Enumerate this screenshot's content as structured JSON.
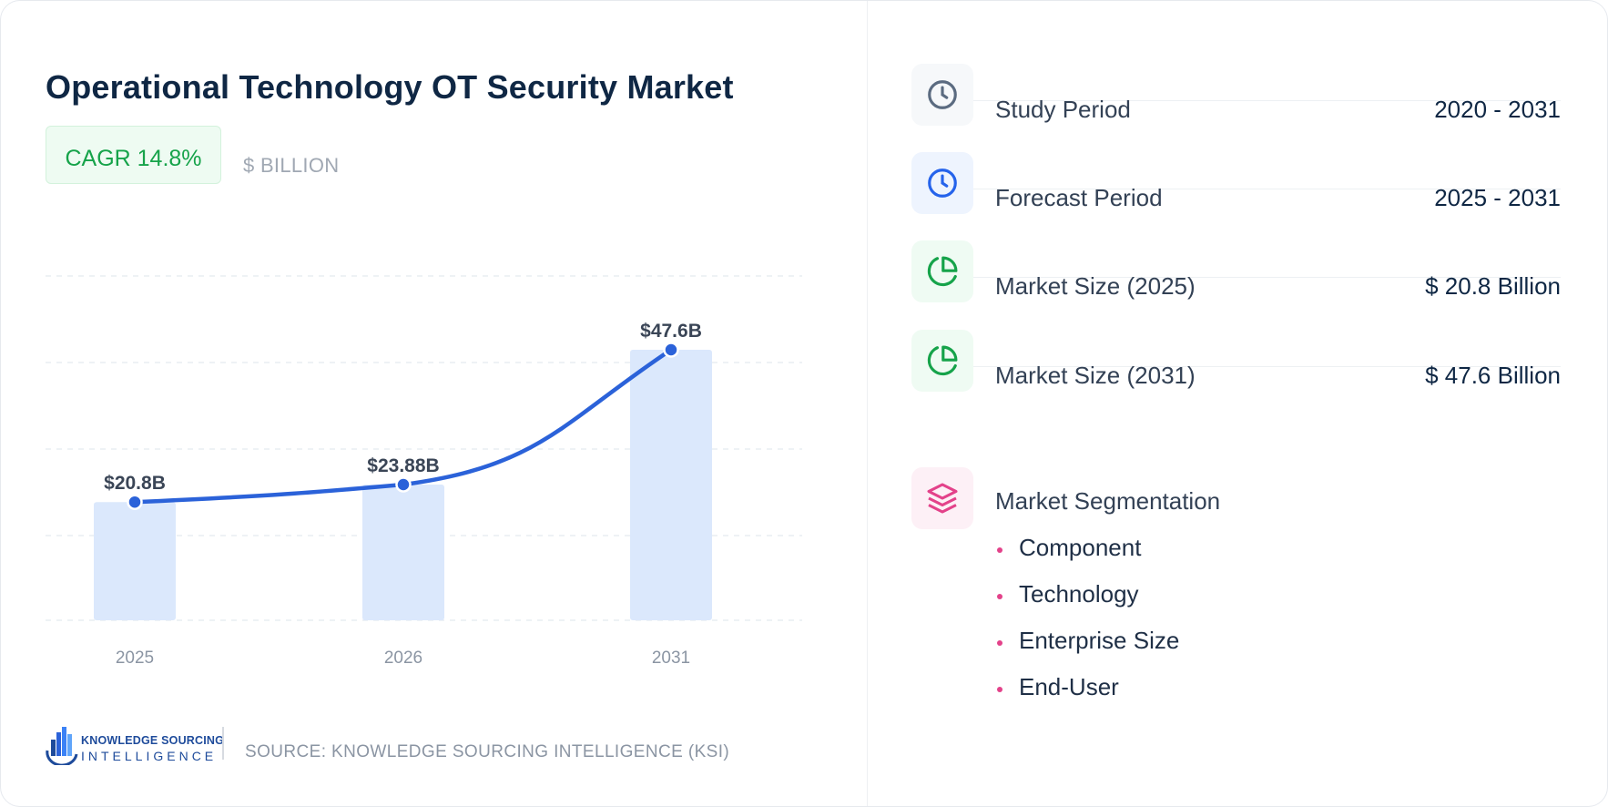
{
  "title": "Operational Technology OT Security Market",
  "cagr_label": "CAGR 14.8%",
  "unit_label": "$ BILLION",
  "chart_data": {
    "type": "bar",
    "categories": [
      "2025",
      "2026",
      "2031"
    ],
    "values": [
      20.8,
      23.88,
      47.6
    ],
    "data_labels": [
      "$20.8B",
      "$23.88B",
      "$47.6B"
    ],
    "ylim": [
      0,
      50
    ],
    "grid": true,
    "trend_line": true,
    "colors": {
      "bar": "#dbe8fc",
      "line": "#2b62d9",
      "point": "#2b62d9",
      "tick": "#8b95a3",
      "label": "#3a4556"
    }
  },
  "brand": {
    "line1": "KNOWLEDGE SOURCING",
    "line2": "INTELLIGENCE",
    "icon": "ksi-logo-icon"
  },
  "source": "SOURCE: KNOWLEDGE SOURCING INTELLIGENCE (KSI)",
  "stats": [
    {
      "icon": "clock-icon",
      "label": "Study Period",
      "value": "2020 - 2031",
      "color": "#5b6b80",
      "bg": "#f6f8fa"
    },
    {
      "icon": "clock-icon",
      "label": "Forecast Period",
      "value": "2025 - 2031",
      "color": "#2563eb",
      "bg": "#eef4fe"
    },
    {
      "icon": "pie-chart-icon",
      "label": "Market Size (2025)",
      "value": "$ 20.8 Billion",
      "color": "#16a34a",
      "bg": "#effbf3"
    },
    {
      "icon": "pie-chart-icon",
      "label": "Market Size (2031)",
      "value": "$ 47.6 Billion",
      "color": "#16a34a",
      "bg": "#effbf3"
    }
  ],
  "segmentation": {
    "icon": "layers-icon",
    "label": "Market Segmentation",
    "color": "#e3428a",
    "items": [
      "Component",
      "Technology",
      "Enterprise Size",
      "End-User"
    ]
  }
}
